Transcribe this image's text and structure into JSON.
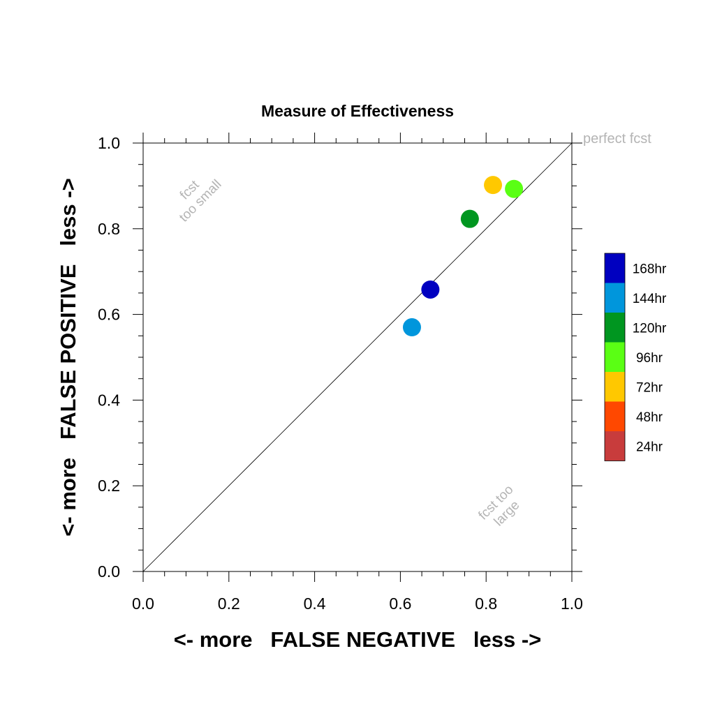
{
  "chart_data": {
    "type": "scatter",
    "title": "Measure of Effectiveness",
    "xlabel": "<- more   FALSE NEGATIVE   less ->",
    "ylabel": "<- more   FALSE POSITIVE   less ->",
    "xlim": [
      0.0,
      1.0
    ],
    "ylim": [
      0.0,
      1.0
    ],
    "xticks": [
      "0.0",
      "0.2",
      "0.4",
      "0.6",
      "0.8",
      "1.0"
    ],
    "yticks": [
      "0.0",
      "0.2",
      "0.4",
      "0.6",
      "0.8",
      "1.0"
    ],
    "grid": false,
    "reference_line": {
      "from": [
        0,
        0
      ],
      "to": [
        1,
        1
      ]
    },
    "annotations": {
      "perfect": "perfect fcst",
      "too_small_1": "fcst",
      "too_small_2": "too small",
      "too_large_1": "fcst too",
      "too_large_2": "large"
    },
    "legend_position": "right",
    "legend": [
      {
        "label": "168hr",
        "color": "#0000c0"
      },
      {
        "label": "144hr",
        "color": "#0096dc"
      },
      {
        "label": "120hr",
        "color": "#009620"
      },
      {
        "label": "96hr",
        "color": "#5aff14"
      },
      {
        "label": "72hr",
        "color": "#ffc800"
      },
      {
        "label": "48hr",
        "color": "#ff4800"
      },
      {
        "label": "24hr",
        "color": "#c83c3c"
      }
    ],
    "series": [
      {
        "name": "168hr",
        "x": [
          0.67
        ],
        "y": [
          0.658
        ],
        "color": "#0000c0"
      },
      {
        "name": "144hr",
        "x": [
          0.627
        ],
        "y": [
          0.57
        ],
        "color": "#0096dc"
      },
      {
        "name": "120hr",
        "x": [
          0.762
        ],
        "y": [
          0.823
        ],
        "color": "#009620"
      },
      {
        "name": "96hr",
        "x": [
          0.865
        ],
        "y": [
          0.893
        ],
        "color": "#5aff14"
      },
      {
        "name": "72hr",
        "x": [
          0.816
        ],
        "y": [
          0.902
        ],
        "color": "#ffc800"
      }
    ]
  }
}
